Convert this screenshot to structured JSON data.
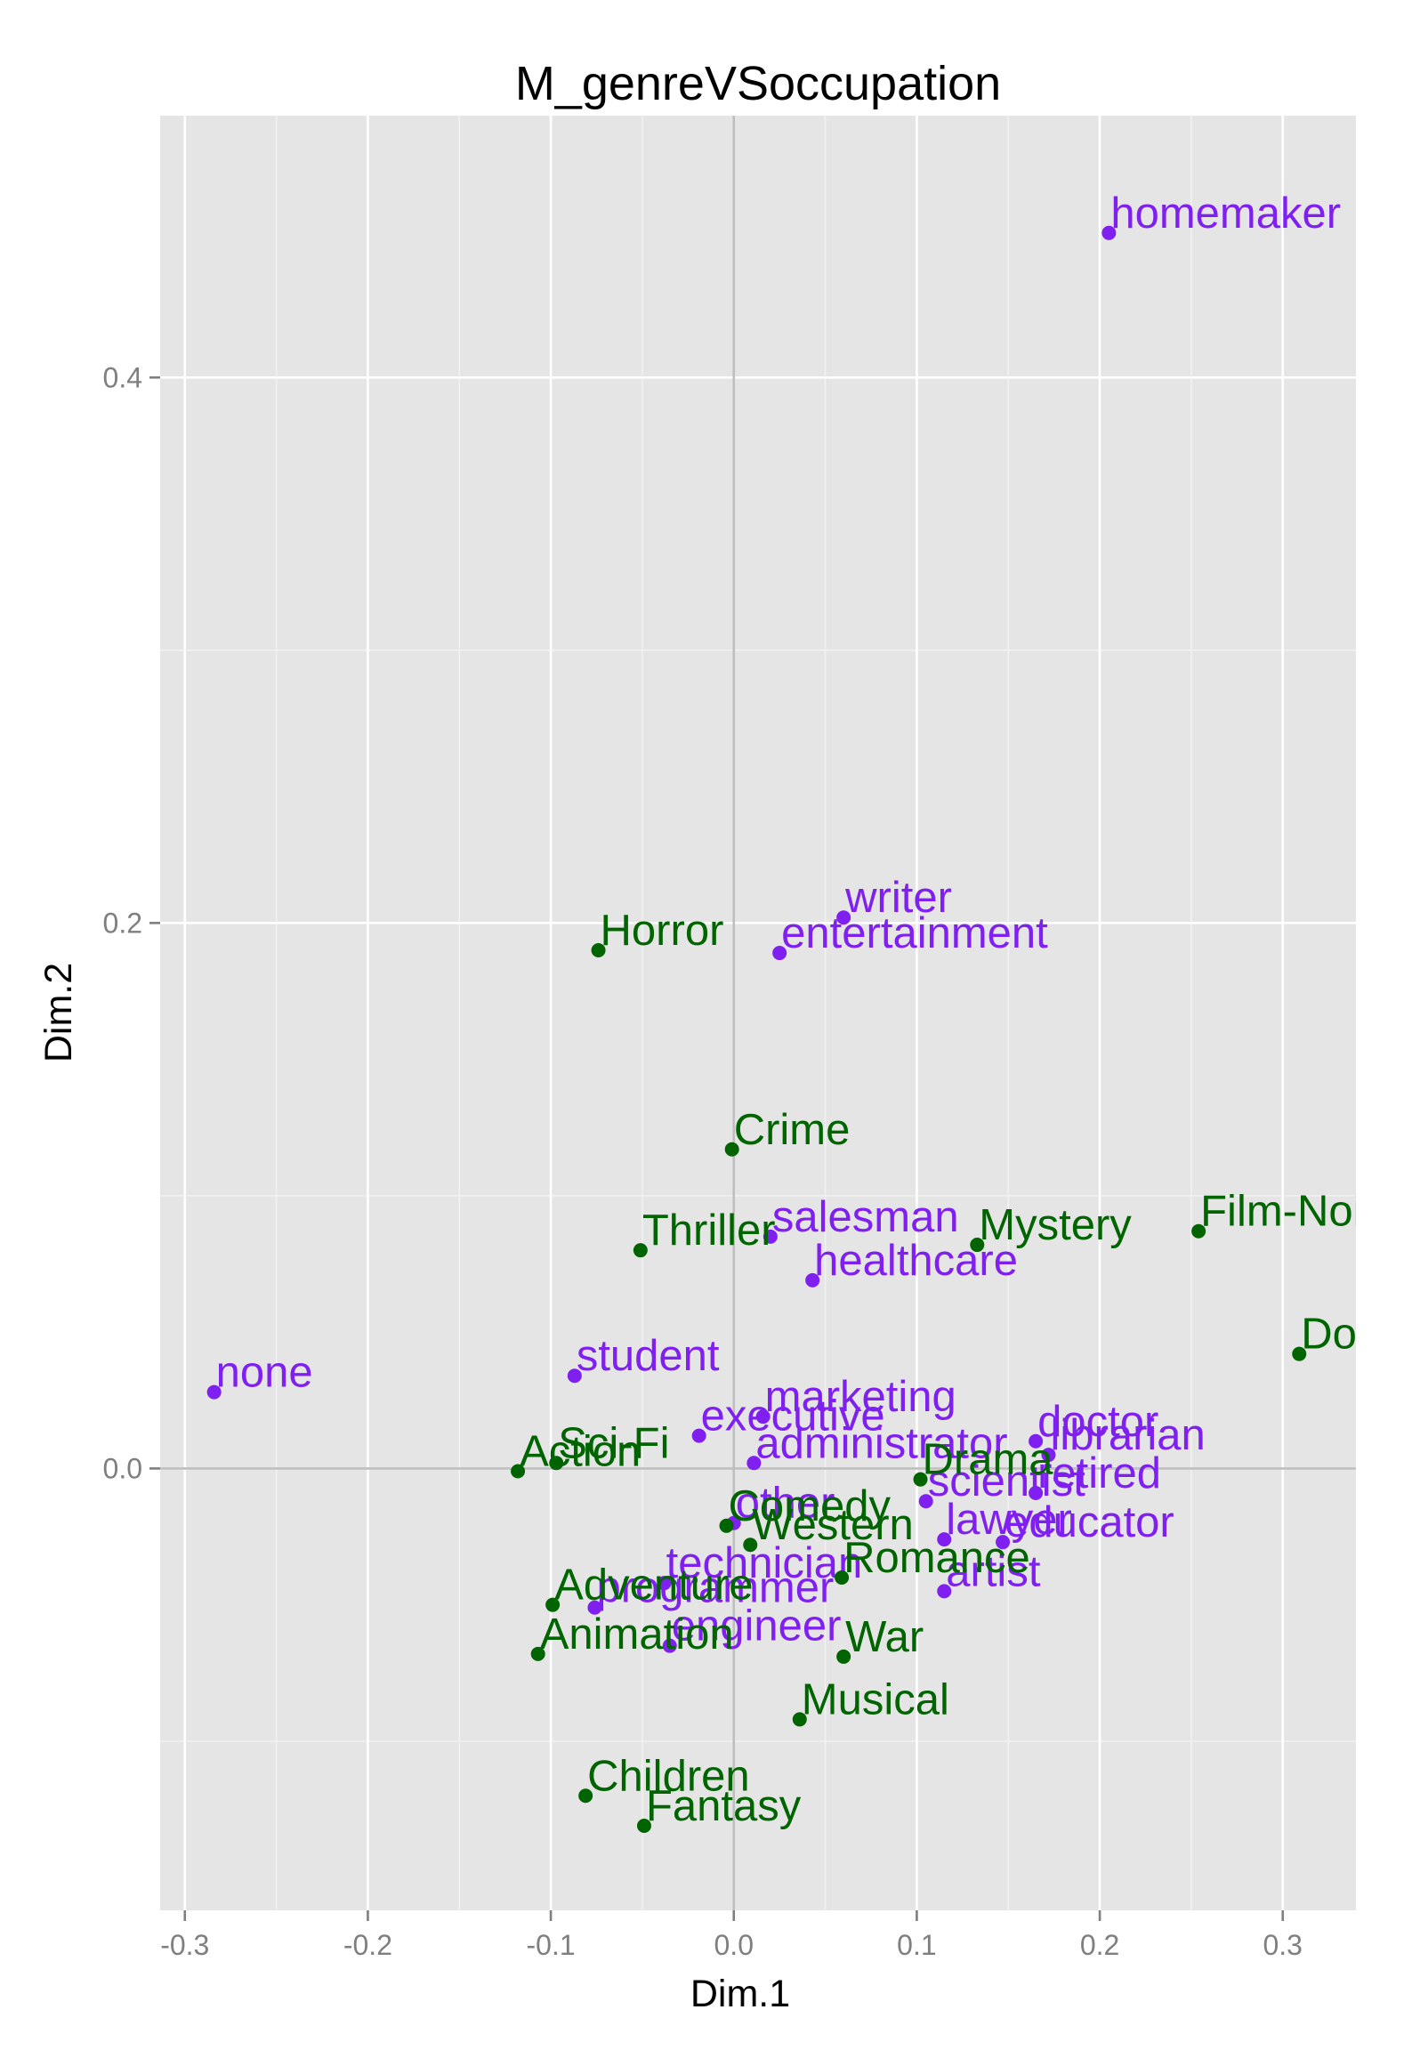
{
  "chart_data": {
    "type": "scatter",
    "title": "M_genreVSoccupation",
    "xlabel": "Dim.1",
    "ylabel": "Dim.2",
    "xlim": [
      -0.3135,
      0.34
    ],
    "ylim": [
      -0.162,
      0.496
    ],
    "x_ticks": [
      -0.3,
      -0.2,
      -0.1,
      0.0,
      0.1,
      0.2,
      0.3
    ],
    "x_tick_labels": [
      "-0.3",
      "-0.2",
      "-0.1",
      "0.0",
      "0.1",
      "0.2",
      "0.3"
    ],
    "y_ticks": [
      0.0,
      0.2,
      0.4
    ],
    "y_tick_labels": [
      "0.0",
      "0.2",
      "0.4"
    ],
    "grid": true,
    "background": "#e5e5e5",
    "series": [
      {
        "color": "#7f1ff0",
        "points": [
          {
            "label": "homemaker",
            "x": 0.205,
            "y": 0.453
          },
          {
            "label": "writer",
            "x": 0.06,
            "y": 0.202
          },
          {
            "label": "entertainment",
            "x": 0.025,
            "y": 0.189
          },
          {
            "label": "salesman",
            "x": 0.02,
            "y": 0.085
          },
          {
            "label": "healthcare",
            "x": 0.043,
            "y": 0.069
          },
          {
            "label": "none",
            "x": -0.284,
            "y": 0.028
          },
          {
            "label": "student",
            "x": -0.087,
            "y": 0.034
          },
          {
            "label": "marketing",
            "x": 0.016,
            "y": 0.019
          },
          {
            "label": "executive",
            "x": -0.019,
            "y": 0.012
          },
          {
            "label": "administrator",
            "x": 0.011,
            "y": 0.002
          },
          {
            "label": "doctor",
            "x": 0.165,
            "y": 0.01
          },
          {
            "label": "librarian",
            "x": 0.172,
            "y": 0.005
          },
          {
            "label": "retired",
            "x": 0.165,
            "y": -0.009
          },
          {
            "label": "scientist",
            "x": 0.105,
            "y": -0.012
          },
          {
            "label": "other",
            "x": 0.0,
            "y": -0.02
          },
          {
            "label": "lawyer",
            "x": 0.115,
            "y": -0.026
          },
          {
            "label": "educator",
            "x": 0.147,
            "y": -0.027
          },
          {
            "label": "technician",
            "x": -0.038,
            "y": -0.042
          },
          {
            "label": "artist",
            "x": 0.115,
            "y": -0.045
          },
          {
            "label": "programmer",
            "x": -0.076,
            "y": -0.051
          },
          {
            "label": "engineer",
            "x": -0.035,
            "y": -0.065
          }
        ]
      },
      {
        "color": "#006400",
        "points": [
          {
            "label": "Horror",
            "x": -0.074,
            "y": 0.19
          },
          {
            "label": "Crime",
            "x": -0.001,
            "y": 0.117
          },
          {
            "label": "Thriller",
            "x": -0.051,
            "y": 0.08
          },
          {
            "label": "Mystery",
            "x": 0.133,
            "y": 0.082
          },
          {
            "label": "Film-Noir",
            "x": 0.254,
            "y": 0.087
          },
          {
            "label": "Documentary",
            "x": 0.309,
            "y": 0.042
          },
          {
            "label": "Action",
            "x": -0.118,
            "y": -0.001
          },
          {
            "label": "Sci-Fi",
            "x": -0.097,
            "y": 0.002
          },
          {
            "label": "Drama",
            "x": 0.102,
            "y": -0.004
          },
          {
            "label": "Comedy",
            "x": -0.004,
            "y": -0.021
          },
          {
            "label": "Western",
            "x": 0.009,
            "y": -0.028
          },
          {
            "label": "Romance",
            "x": 0.059,
            "y": -0.04
          },
          {
            "label": "Adventure",
            "x": -0.099,
            "y": -0.05
          },
          {
            "label": "Animation",
            "x": -0.107,
            "y": -0.068
          },
          {
            "label": "War",
            "x": 0.06,
            "y": -0.069
          },
          {
            "label": "Musical",
            "x": 0.036,
            "y": -0.092
          },
          {
            "label": "Children",
            "x": -0.081,
            "y": -0.12
          },
          {
            "label": "Fantasy",
            "x": -0.049,
            "y": -0.131
          }
        ]
      }
    ]
  }
}
